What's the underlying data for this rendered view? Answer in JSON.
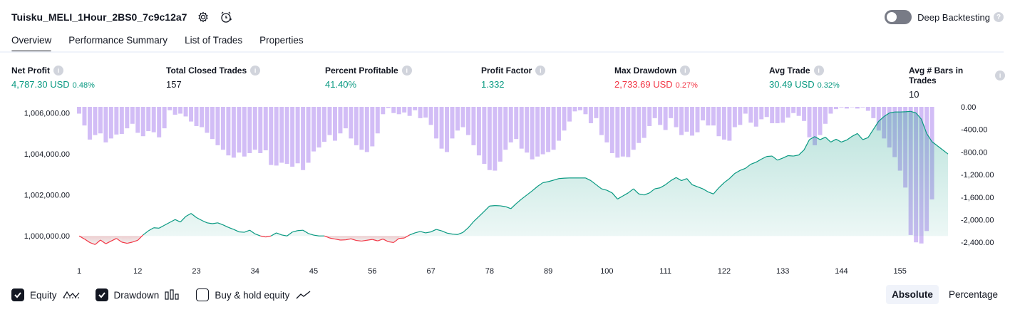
{
  "strategy": {
    "title": "Tuisku_MELI_1Hour_2BS0_7c9c12a7",
    "settings_icon": "gear-icon",
    "alert_icon": "add-alert-icon"
  },
  "deep_backtesting": {
    "label": "Deep Backtesting",
    "enabled": false,
    "help": "?"
  },
  "tabs": [
    {
      "label": "Overview",
      "active": true
    },
    {
      "label": "Performance Summary",
      "active": false
    },
    {
      "label": "List of Trades",
      "active": false
    },
    {
      "label": "Properties",
      "active": false
    }
  ],
  "metrics": [
    {
      "label": "Net Profit",
      "value": "4,787.30 USD",
      "pct": "0.48%",
      "tone": "pos"
    },
    {
      "label": "Total Closed Trades",
      "value": "157",
      "pct": "",
      "tone": "neutral"
    },
    {
      "label": "Percent Profitable",
      "value": "41.40%",
      "pct": "",
      "tone": "pos"
    },
    {
      "label": "Profit Factor",
      "value": "1.332",
      "pct": "",
      "tone": "pos"
    },
    {
      "label": "Max Drawdown",
      "value": "2,733.69 USD",
      "pct": "0.27%",
      "tone": "neg"
    },
    {
      "label": "Avg Trade",
      "value": "30.49 USD",
      "pct": "0.32%",
      "tone": "pos"
    },
    {
      "label": "Avg # Bars in Trades",
      "value": "10",
      "pct": "",
      "tone": "neutral"
    }
  ],
  "legend": {
    "equity": {
      "label": "Equity",
      "checked": true
    },
    "drawdown": {
      "label": "Drawdown",
      "checked": true
    },
    "buy_hold": {
      "label": "Buy & hold equity",
      "checked": false
    }
  },
  "modes": {
    "absolute": "Absolute",
    "percentage": "Percentage",
    "selected": "Absolute"
  },
  "colors": {
    "equity_pos": "#089981",
    "equity_neg": "#f23645",
    "drawdown_bar": "#cdb6f5",
    "accent": "#131722"
  },
  "chart_data": {
    "type": "line",
    "x_ticks": [
      "1",
      "12",
      "23",
      "34",
      "45",
      "56",
      "67",
      "78",
      "89",
      "100",
      "111",
      "122",
      "133",
      "144",
      "155"
    ],
    "left_ticks": [
      "1,006,000.00",
      "1,004,000.00",
      "1,002,000.00",
      "1,000,000.00"
    ],
    "right_ticks": [
      "0.00",
      "-400.00",
      "-800.00",
      "-1,200.00",
      "-1,600.00",
      "-2,000.00",
      "-2,400.00"
    ],
    "equity_ylim": [
      999000,
      1006300
    ],
    "drawdown_ylim": [
      -2650,
      0
    ],
    "baseline": 1000000,
    "series": [
      {
        "name": "Equity",
        "axis": "left",
        "values": [
          1000000,
          999850,
          999680,
          999580,
          999800,
          999620,
          999750,
          999880,
          999700,
          999640,
          999700,
          999790,
          1000050,
          1000250,
          1000400,
          1000380,
          1000520,
          1000660,
          1000800,
          1000680,
          1000950,
          1001100,
          1000900,
          1000760,
          1000640,
          1000600,
          1000640,
          1000540,
          1000420,
          1000320,
          1000200,
          1000180,
          1000280,
          1000100,
          1000000,
          999950,
          1000000,
          1000150,
          1000050,
          1000000,
          1000190,
          1000260,
          1000280,
          1000120,
          1000040,
          1000000,
          1000000,
          999900,
          999850,
          999800,
          999810,
          999860,
          999780,
          999750,
          999790,
          999830,
          999760,
          999850,
          999720,
          999680,
          999880,
          999900,
          1000050,
          1000150,
          1000220,
          1000150,
          1000200,
          1000320,
          1000250,
          1000140,
          1000090,
          1000070,
          1000170,
          1000400,
          1000700,
          1000950,
          1001200,
          1001460,
          1001480,
          1001470,
          1001430,
          1001330,
          1001580,
          1001800,
          1002000,
          1002200,
          1002420,
          1002600,
          1002650,
          1002720,
          1002800,
          1002820,
          1002830,
          1002830,
          1002830,
          1002830,
          1002700,
          1002500,
          1002300,
          1002230,
          1002100,
          1001800,
          1001950,
          1002100,
          1002300,
          1002050,
          1002000,
          1002100,
          1002300,
          1002350,
          1002500,
          1002700,
          1002850,
          1002700,
          1002800,
          1002500,
          1002400,
          1002300,
          1002150,
          1002050,
          1002350,
          1002600,
          1002800,
          1003050,
          1003200,
          1003300,
          1003500,
          1003600,
          1003750,
          1003880,
          1003900,
          1003700,
          1003800,
          1003920,
          1003900,
          1003950,
          1004200,
          1004700,
          1004850,
          1004700,
          1004820,
          1004580,
          1004720,
          1004580,
          1004680,
          1004860,
          1005000,
          1004700,
          1004800,
          1005200,
          1005600,
          1005830,
          1006000,
          1006050,
          1006050,
          1006060,
          1006080,
          1006000,
          1005700,
          1005000,
          1004600,
          1004400,
          1004200,
          1004000
        ]
      },
      {
        "name": "Drawdown",
        "axis": "right",
        "values": [
          -120,
          -330,
          -580,
          -500,
          -470,
          -630,
          -560,
          -490,
          -480,
          -380,
          -300,
          -460,
          -520,
          -430,
          -450,
          -540,
          -380,
          -60,
          -140,
          -120,
          -170,
          -260,
          -340,
          -360,
          -460,
          -570,
          -680,
          -760,
          -860,
          -900,
          -810,
          -880,
          -820,
          -760,
          -820,
          -770,
          -1030,
          -1040,
          -990,
          -1010,
          -1060,
          -1000,
          -1120,
          -990,
          -790,
          -720,
          -620,
          -500,
          -600,
          -470,
          -380,
          -560,
          -680,
          -760,
          -800,
          -700,
          -470,
          -130,
          -20,
          -110,
          -130,
          -100,
          -160,
          -60,
          -200,
          -190,
          -320,
          -560,
          -740,
          -800,
          -560,
          -420,
          -360,
          -500,
          -680,
          -860,
          -1010,
          -1120,
          -1130,
          -970,
          -760,
          -630,
          -570,
          -740,
          -810,
          -930,
          -880,
          -840,
          -800,
          -760,
          -600,
          -420,
          -260,
          -80,
          -60,
          -130,
          -290,
          -200,
          -500,
          -630,
          -820,
          -900,
          -880,
          -890,
          -760,
          -640,
          -550,
          -340,
          -200,
          -320,
          -410,
          -200,
          -360,
          -500,
          -440,
          -510,
          -450,
          -240,
          -330,
          -330,
          -520,
          -580,
          -600,
          -360,
          -320,
          -120,
          -280,
          -350,
          -220,
          -180,
          -290,
          -290,
          -280,
          -190,
          -110,
          -160,
          -250,
          -540,
          -680,
          -500,
          -300,
          -120,
          -40,
          -10,
          -30,
          -5,
          -30,
          -10,
          -70,
          -200,
          -420,
          -560,
          -720,
          -890,
          -1130,
          -1430,
          -2270,
          -2400,
          -2420,
          -2200,
          -1640
        ]
      }
    ]
  }
}
